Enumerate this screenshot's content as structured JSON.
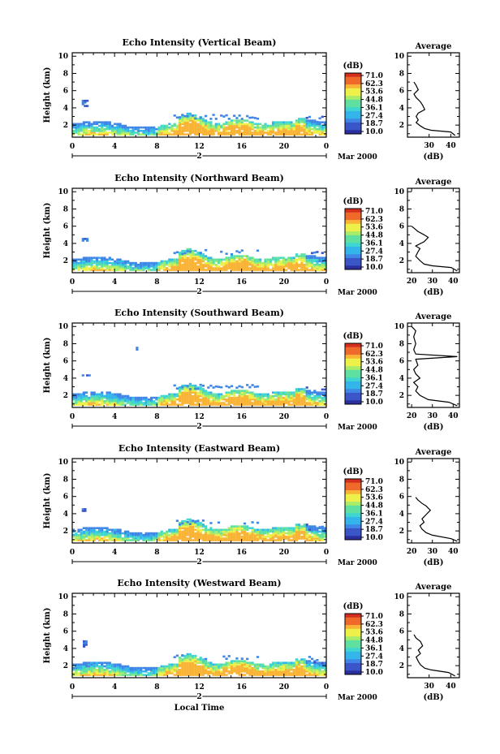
{
  "chart_data": [
    {
      "type": "heatmap",
      "title": "Echo Intensity (Vertical Beam)",
      "ylabel": "Height (km)",
      "x_ticks": [
        "0",
        "4",
        "8",
        "12",
        "16",
        "20",
        "0"
      ],
      "y_ticks": [
        "2",
        "4",
        "6",
        "8",
        "10"
      ],
      "xlim": [
        0,
        24
      ],
      "ylim": [
        0.6,
        10.4
      ],
      "date_marker": "2",
      "month_label": "Mar 2000",
      "colorbar": {
        "unit": "(dB)",
        "labels": [
          "71.0",
          "62.3",
          "53.6",
          "44.8",
          "36.1",
          "27.4",
          "18.7",
          "10.0"
        ]
      },
      "profile": {
        "title": "Average",
        "xlabel": "(dB)",
        "x_ticks": [
          "30",
          "40"
        ],
        "xlim": [
          20,
          44
        ],
        "points": [
          [
            42,
            0.8
          ],
          [
            40,
            1.2
          ],
          [
            31,
            1.4
          ],
          [
            28,
            1.6
          ],
          [
            26,
            1.9
          ],
          [
            24,
            2.3
          ],
          [
            25,
            2.6
          ],
          [
            24,
            3.0
          ],
          [
            25,
            3.4
          ],
          [
            28,
            3.8
          ],
          [
            27,
            4.3
          ],
          [
            26,
            4.7
          ],
          [
            24,
            5.2
          ],
          [
            23,
            5.6
          ],
          [
            25,
            6.1
          ],
          [
            24,
            6.6
          ],
          [
            23,
            7.0
          ]
        ]
      }
    },
    {
      "type": "heatmap",
      "title": "Echo Intensity (Northward Beam)",
      "ylabel": "Height (km)",
      "x_ticks": [
        "0",
        "4",
        "8",
        "12",
        "16",
        "20",
        "0"
      ],
      "y_ticks": [
        "2",
        "4",
        "6",
        "8",
        "10"
      ],
      "xlim": [
        0,
        24
      ],
      "ylim": [
        0.6,
        10.4
      ],
      "date_marker": "2",
      "month_label": "Mar 2000",
      "colorbar": {
        "unit": "(dB)",
        "labels": [
          "71.0",
          "62.3",
          "53.6",
          "44.8",
          "36.1",
          "27.4",
          "18.7",
          "10.0"
        ]
      },
      "profile": {
        "title": "Average",
        "xlabel": "(dB)",
        "x_ticks": [
          "20",
          "30",
          "40"
        ],
        "xlim": [
          18,
          43
        ],
        "points": [
          [
            42,
            0.8
          ],
          [
            39,
            1.2
          ],
          [
            30,
            1.4
          ],
          [
            26,
            1.6
          ],
          [
            24,
            2.0
          ],
          [
            22,
            2.5
          ],
          [
            23,
            3.0
          ],
          [
            24,
            3.4
          ],
          [
            22,
            3.7
          ],
          [
            26,
            4.2
          ],
          [
            28,
            4.7
          ],
          [
            26,
            5.0
          ],
          [
            23,
            5.4
          ],
          [
            21,
            5.8
          ],
          [
            20,
            6.0
          ]
        ]
      }
    },
    {
      "type": "heatmap",
      "title": "Echo Intensity (Southward Beam)",
      "ylabel": "Height (km)",
      "x_ticks": [
        "0",
        "4",
        "8",
        "12",
        "16",
        "20",
        "0"
      ],
      "y_ticks": [
        "2",
        "4",
        "6",
        "8",
        "10"
      ],
      "xlim": [
        0,
        24
      ],
      "ylim": [
        0.6,
        10.4
      ],
      "date_marker": "2",
      "month_label": "Mar 2000",
      "colorbar": {
        "unit": "(dB)",
        "labels": [
          "71.0",
          "62.3",
          "53.6",
          "44.8",
          "36.1",
          "27.4",
          "18.7",
          "10.0"
        ]
      },
      "profile": {
        "title": "Average",
        "xlabel": "(dB)",
        "x_ticks": [
          "20",
          "30",
          "40"
        ],
        "xlim": [
          18,
          43
        ],
        "points": [
          [
            42,
            0.8
          ],
          [
            38,
            1.2
          ],
          [
            28,
            1.5
          ],
          [
            24,
            2.0
          ],
          [
            22,
            2.5
          ],
          [
            23,
            3.0
          ],
          [
            21,
            3.5
          ],
          [
            24,
            4.0
          ],
          [
            22,
            4.5
          ],
          [
            21,
            5.0
          ],
          [
            23,
            5.5
          ],
          [
            22,
            6.2
          ],
          [
            42,
            6.5
          ],
          [
            22,
            6.8
          ],
          [
            21,
            7.3
          ],
          [
            22,
            8.0
          ],
          [
            21,
            8.8
          ],
          [
            22,
            9.5
          ],
          [
            20,
            10.0
          ]
        ]
      }
    },
    {
      "type": "heatmap",
      "title": "Echo Intensity (Eastward Beam)",
      "ylabel": "Height (km)",
      "x_ticks": [
        "0",
        "4",
        "8",
        "12",
        "16",
        "20",
        "0"
      ],
      "y_ticks": [
        "2",
        "4",
        "6",
        "8",
        "10"
      ],
      "xlim": [
        0,
        24
      ],
      "ylim": [
        0.6,
        10.4
      ],
      "date_marker": "2",
      "month_label": "Mar 2000",
      "colorbar": {
        "unit": "(dB)",
        "labels": [
          "71.0",
          "62.3",
          "53.6",
          "44.8",
          "36.1",
          "27.4",
          "18.7",
          "10.0"
        ]
      },
      "profile": {
        "title": "Average",
        "xlabel": "(dB)",
        "x_ticks": [
          "20",
          "30",
          "40"
        ],
        "xlim": [
          18,
          43
        ],
        "points": [
          [
            42,
            0.8
          ],
          [
            39,
            1.1
          ],
          [
            30,
            1.5
          ],
          [
            27,
            1.8
          ],
          [
            25,
            2.2
          ],
          [
            24,
            2.6
          ],
          [
            26,
            3.0
          ],
          [
            25,
            3.4
          ],
          [
            27,
            3.9
          ],
          [
            29,
            4.4
          ],
          [
            27,
            4.9
          ],
          [
            25,
            5.2
          ],
          [
            23,
            5.6
          ],
          [
            22,
            5.9
          ]
        ]
      }
    },
    {
      "type": "heatmap",
      "title": "Echo Intensity (Westward Beam)",
      "ylabel": "Height (km)",
      "x_ticks": [
        "0",
        "4",
        "8",
        "12",
        "16",
        "20",
        "0"
      ],
      "y_ticks": [
        "2",
        "4",
        "6",
        "8",
        "10"
      ],
      "xlim": [
        0,
        24
      ],
      "ylim": [
        0.6,
        10.4
      ],
      "date_marker": "2",
      "month_label": "Mar 2000",
      "xlabel": "Local Time",
      "colorbar": {
        "unit": "(dB)",
        "labels": [
          "71.0",
          "62.3",
          "53.6",
          "44.8",
          "36.1",
          "27.4",
          "18.7",
          "10.0"
        ]
      },
      "profile": {
        "title": "Average",
        "xlabel": "(dB)",
        "x_ticks": [
          "30",
          "40"
        ],
        "xlim": [
          20,
          44
        ],
        "points": [
          [
            42,
            0.8
          ],
          [
            39,
            1.2
          ],
          [
            31,
            1.5
          ],
          [
            28,
            1.7
          ],
          [
            26,
            2.1
          ],
          [
            25,
            2.5
          ],
          [
            24,
            3.0
          ],
          [
            26,
            3.4
          ],
          [
            25,
            3.8
          ],
          [
            27,
            4.3
          ],
          [
            26,
            4.8
          ],
          [
            24,
            5.2
          ],
          [
            23,
            5.6
          ]
        ]
      }
    }
  ]
}
